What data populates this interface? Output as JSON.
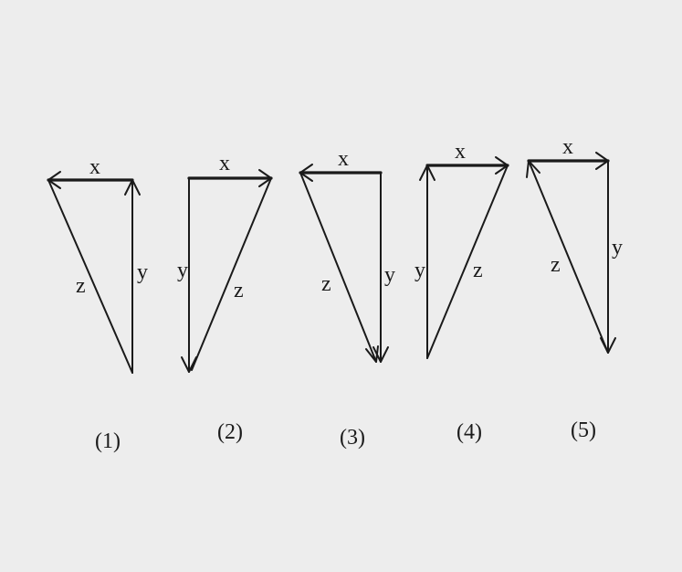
{
  "figures": [
    {
      "number": "(1)",
      "labels": {
        "x": "x",
        "y": "y",
        "z": "z"
      }
    },
    {
      "number": "(2)",
      "labels": {
        "x": "x",
        "y": "y",
        "z": "z"
      }
    },
    {
      "number": "(3)",
      "labels": {
        "x": "x",
        "y": "y",
        "z": "z"
      }
    },
    {
      "number": "(4)",
      "labels": {
        "x": "x",
        "y": "y",
        "z": "z"
      }
    },
    {
      "number": "(5)",
      "labels": {
        "x": "x",
        "y": "y",
        "z": "z"
      }
    }
  ]
}
